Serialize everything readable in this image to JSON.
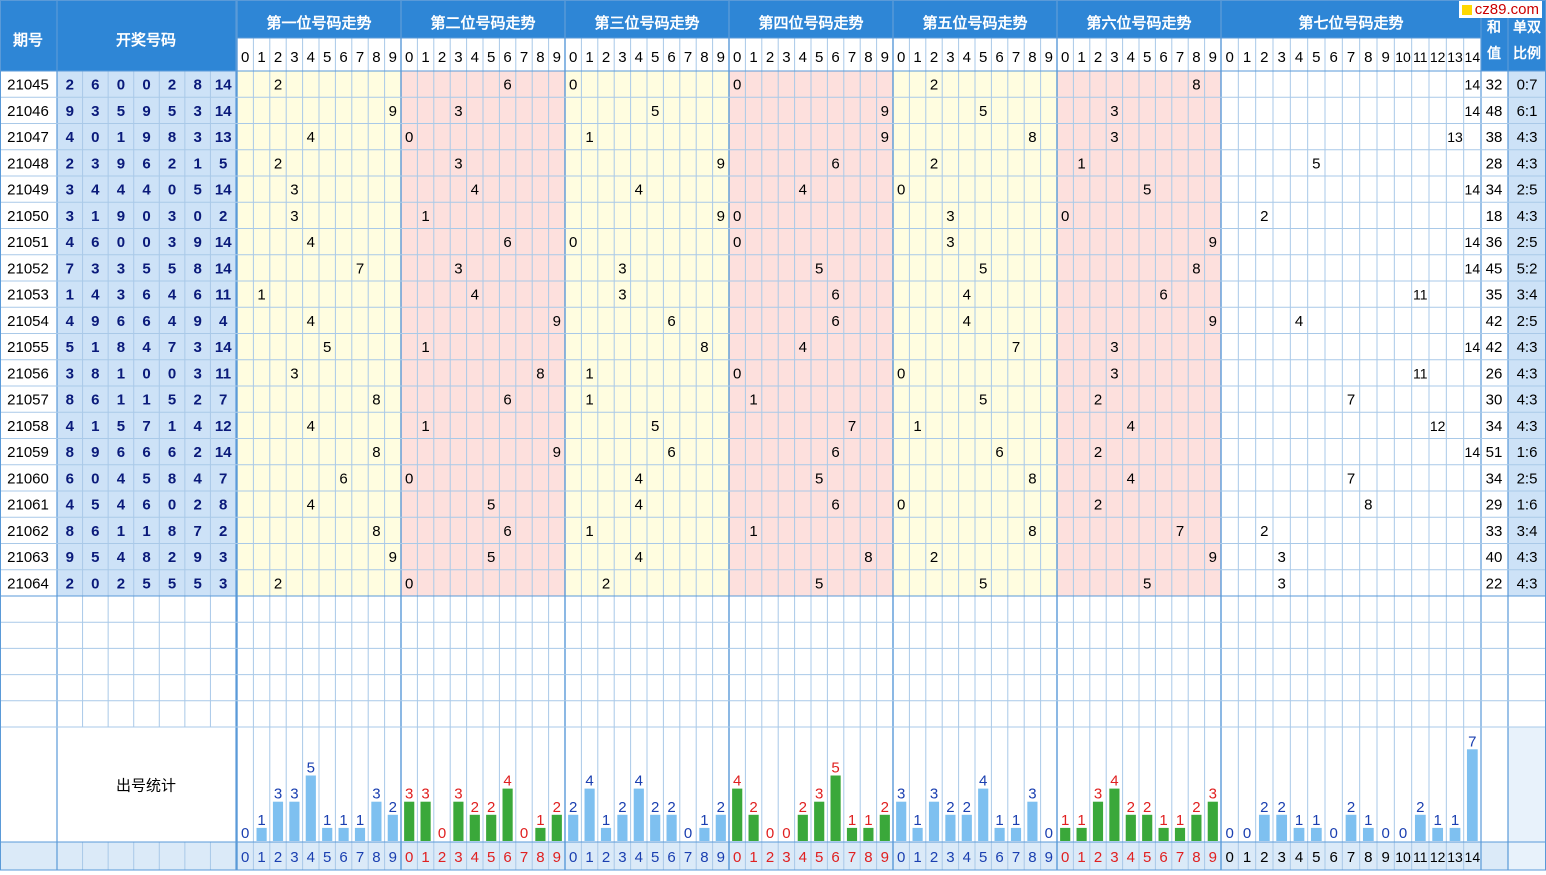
{
  "header": {
    "issue_label": "期号",
    "draw_label": "开奖号码",
    "position_titles": [
      "第一位号码走势",
      "第二位号码走势",
      "第三位号码走势",
      "第四位号码走势",
      "第五位号码走势",
      "第六位号码走势",
      "第七位号码走势"
    ],
    "sum_label": "和值",
    "ratio_label": "单双比例",
    "stat_label": "出号统计"
  },
  "logo": {
    "text": "cz89.com"
  },
  "colors": {
    "header_bg": "#2e86d6",
    "header_text": "#ffffff",
    "draw_col_bg": "#cde2f7",
    "yellow_block": "#fffde0",
    "pink_block": "#fde0dd",
    "plain_block": "#ffffff",
    "grid_line": "#a9c9e8",
    "bar_blue": "#7ec0f0",
    "bar_green": "#3aa83a",
    "count_blue": "#1a3fb0",
    "count_red": "#e02020",
    "draw_text": "#0a1a7a"
  },
  "chart_data": {
    "type": "table",
    "issues": [
      "21045",
      "21046",
      "21047",
      "21048",
      "21049",
      "21050",
      "21051",
      "21052",
      "21053",
      "21054",
      "21055",
      "21056",
      "21057",
      "21058",
      "21059",
      "21060",
      "21061",
      "21062",
      "21063",
      "21064"
    ],
    "draws": [
      [
        2,
        6,
        0,
        0,
        2,
        8,
        14
      ],
      [
        9,
        3,
        5,
        9,
        5,
        3,
        14
      ],
      [
        4,
        0,
        1,
        9,
        8,
        3,
        13
      ],
      [
        2,
        3,
        9,
        6,
        2,
        1,
        5
      ],
      [
        3,
        4,
        4,
        4,
        0,
        5,
        14
      ],
      [
        3,
        1,
        9,
        0,
        3,
        0,
        2
      ],
      [
        4,
        6,
        0,
        0,
        3,
        9,
        14
      ],
      [
        7,
        3,
        3,
        5,
        5,
        8,
        14
      ],
      [
        1,
        4,
        3,
        6,
        4,
        6,
        11
      ],
      [
        4,
        9,
        6,
        6,
        4,
        9,
        4
      ],
      [
        5,
        1,
        8,
        4,
        7,
        3,
        14
      ],
      [
        3,
        8,
        1,
        0,
        0,
        3,
        11
      ],
      [
        8,
        6,
        1,
        1,
        5,
        2,
        7
      ],
      [
        4,
        1,
        5,
        7,
        1,
        4,
        12
      ],
      [
        8,
        9,
        6,
        6,
        6,
        2,
        14
      ],
      [
        6,
        0,
        4,
        5,
        8,
        4,
        7
      ],
      [
        4,
        5,
        4,
        6,
        0,
        2,
        8
      ],
      [
        8,
        6,
        1,
        1,
        8,
        7,
        2
      ],
      [
        9,
        5,
        4,
        8,
        2,
        9,
        3
      ],
      [
        2,
        0,
        2,
        5,
        5,
        5,
        3
      ]
    ],
    "sums": [
      "32",
      "48",
      "38",
      "28",
      "34",
      "18",
      "36",
      "45",
      "35",
      "42",
      "42",
      "26",
      "30",
      "34",
      "51",
      "34",
      "29",
      "33",
      "40",
      "22"
    ],
    "ratios": [
      "0:7",
      "6:1",
      "4:3",
      "4:3",
      "2:5",
      "4:3",
      "2:5",
      "5:2",
      "3:4",
      "2:5",
      "4:3",
      "4:3",
      "4:3",
      "4:3",
      "1:6",
      "2:5",
      "1:6",
      "3:4",
      "4:3",
      "4:3"
    ],
    "digit_labels": [
      "0",
      "1",
      "2",
      "3",
      "4",
      "5",
      "6",
      "7",
      "8",
      "9"
    ],
    "digit_labels_7": [
      "0",
      "1",
      "2",
      "3",
      "4",
      "5",
      "6",
      "7",
      "8",
      "9",
      "10",
      "11",
      "12",
      "13",
      "14"
    ],
    "counts": [
      [
        0,
        1,
        3,
        3,
        5,
        1,
        1,
        1,
        3,
        2
      ],
      [
        3,
        3,
        0,
        3,
        2,
        2,
        4,
        0,
        1,
        2
      ],
      [
        2,
        4,
        1,
        2,
        4,
        2,
        2,
        0,
        1,
        2
      ],
      [
        4,
        2,
        0,
        0,
        2,
        3,
        5,
        1,
        1,
        2
      ],
      [
        3,
        1,
        3,
        2,
        2,
        4,
        1,
        1,
        3,
        0
      ],
      [
        1,
        1,
        3,
        4,
        2,
        2,
        1,
        1,
        2,
        3
      ],
      [
        0,
        0,
        2,
        2,
        1,
        1,
        0,
        2,
        1,
        0,
        0,
        2,
        1,
        1,
        7
      ]
    ]
  }
}
